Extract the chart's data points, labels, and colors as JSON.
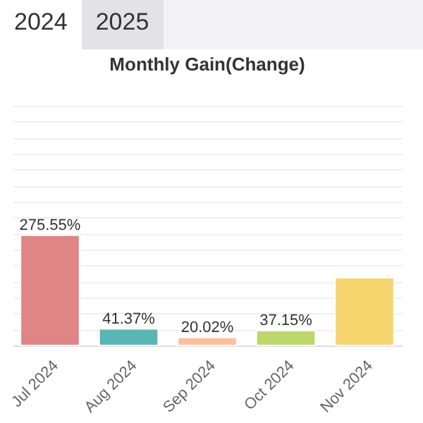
{
  "chart_data": {
    "type": "bar",
    "title": "Monthly Gain(Change)",
    "annotations": [
      "2024",
      "2025"
    ],
    "categories": [
      "Jul 2024",
      "Aug 2024",
      "Sep 2024",
      "Oct 2024",
      "Nov 2024"
    ],
    "values": [
      275.55,
      41.37,
      20.02,
      37.15,
      169.6
    ],
    "colors": [
      "#e08585",
      "#5ab5b5",
      "#fdbf9a",
      "#bcd76a",
      "#f7d56e"
    ],
    "value_labels": [
      "275.55%",
      "41.37%",
      "20.02%",
      "37.15%",
      null
    ],
    "ylim": [
      0,
      600
    ],
    "yticks": [
      {
        "value": 0,
        "label": null
      },
      {
        "value": 40,
        "label": null
      },
      {
        "value": 80,
        "label": null
      },
      {
        "value": 120,
        "label": null
      },
      {
        "value": 160,
        "label": null
      },
      {
        "value": 200,
        "label": null
      },
      {
        "value": 240,
        "label": null
      },
      {
        "value": 280,
        "label": null
      },
      {
        "value": 320,
        "label": null
      },
      {
        "value": 360,
        "label": null
      },
      {
        "value": 400,
        "label": null
      },
      {
        "value": 440,
        "label": null
      },
      {
        "value": 480,
        "label": null
      },
      {
        "value": 520,
        "label": null
      },
      {
        "value": 560,
        "label": null
      },
      {
        "value": 600,
        "label": null
      }
    ],
    "grid": "y",
    "tick_labels": "x"
  }
}
